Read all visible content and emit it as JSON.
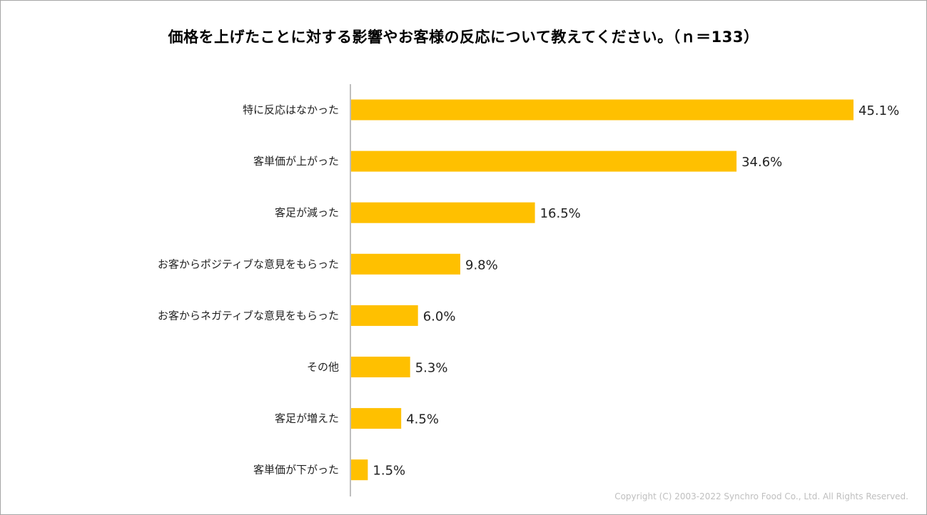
{
  "chart_data": {
    "type": "bar",
    "orientation": "horizontal",
    "title": "価格を上げたことに対する影響やお客様の反応について教えてください。（ｎ＝133）",
    "categories": [
      "特に反応はなかった",
      "客単価が上がった",
      "客足が減った",
      "お客からポジティブな意見をもらった",
      "お客からネガティブな意見をもらった",
      "その他",
      "客足が増えた",
      "客単価が下がった"
    ],
    "values": [
      45.1,
      34.6,
      16.5,
      9.8,
      6.0,
      5.3,
      4.5,
      1.5
    ],
    "value_labels": [
      "45.1%",
      "34.6%",
      "16.5%",
      "9.8%",
      "6.0%",
      "5.3%",
      "4.5%",
      "1.5%"
    ],
    "xlim": [
      0,
      45.1
    ],
    "bar_color": "#FFC000",
    "axis_color": "#7f7f7f",
    "xlabel": "",
    "ylabel": ""
  },
  "footer": {
    "copyright": "Copyright (C) 2003-2022   Synchro Food Co., Ltd. All Rights Reserved."
  }
}
